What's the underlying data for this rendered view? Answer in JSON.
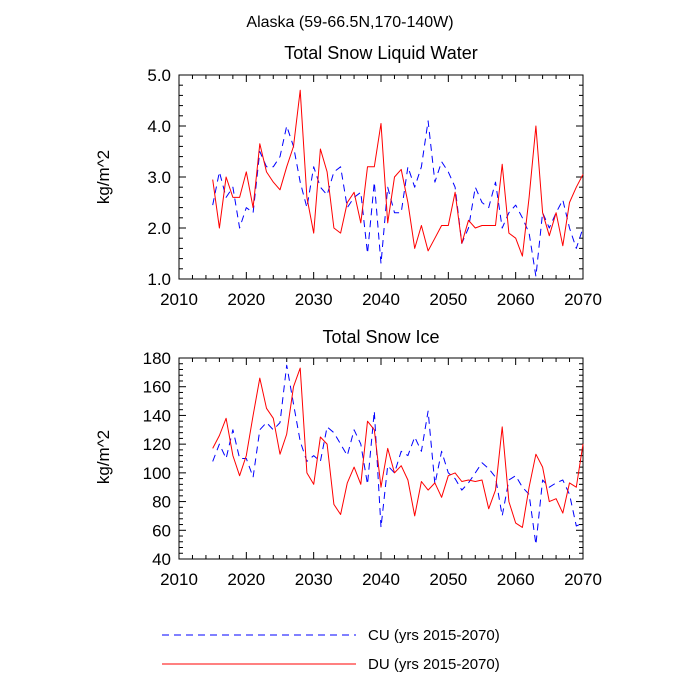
{
  "figure": {
    "title": "Alaska (59-66.5N,170-140W)"
  },
  "legend": {
    "entries": [
      {
        "label": "CU (yrs 2015-2070)",
        "color": "#0000ff",
        "style": "dashed"
      },
      {
        "label": "DU (yrs 2015-2070)",
        "color": "#ff0000",
        "style": "solid"
      }
    ]
  },
  "chart_data": [
    {
      "type": "line",
      "title": "Total Snow Liquid Water",
      "xlabel": "",
      "ylabel": "kg/m^2",
      "xlim": [
        2010,
        2070
      ],
      "ylim": [
        1.0,
        5.0
      ],
      "xticks": [
        2010,
        2020,
        2030,
        2040,
        2050,
        2060,
        2070
      ],
      "yticks": [
        1.0,
        2.0,
        3.0,
        4.0,
        5.0
      ],
      "ytick_labels": [
        "1.0",
        "2.0",
        "3.0",
        "4.0",
        "5.0"
      ],
      "x": [
        2015,
        2016,
        2017,
        2018,
        2019,
        2020,
        2021,
        2022,
        2023,
        2024,
        2025,
        2026,
        2027,
        2028,
        2029,
        2030,
        2031,
        2032,
        2033,
        2034,
        2035,
        2036,
        2037,
        2038,
        2039,
        2040,
        2041,
        2042,
        2043,
        2044,
        2045,
        2046,
        2047,
        2048,
        2049,
        2050,
        2051,
        2052,
        2053,
        2054,
        2055,
        2056,
        2057,
        2058,
        2059,
        2060,
        2061,
        2062,
        2063,
        2064,
        2065,
        2066,
        2067,
        2068,
        2069,
        2070
      ],
      "series": [
        {
          "name": "CU (yrs 2015-2070)",
          "color": "#0000ff",
          "style": "dashed",
          "values": [
            2.45,
            3.1,
            2.6,
            2.8,
            2.0,
            2.4,
            2.3,
            3.5,
            3.2,
            3.2,
            3.4,
            4.0,
            3.6,
            2.9,
            2.4,
            3.2,
            2.8,
            2.65,
            3.1,
            3.2,
            2.4,
            2.6,
            2.7,
            1.5,
            2.9,
            1.3,
            2.8,
            2.3,
            2.3,
            3.2,
            2.8,
            3.2,
            4.1,
            2.9,
            3.3,
            3.1,
            2.8,
            1.7,
            2.0,
            2.8,
            2.5,
            2.4,
            2.9,
            2.0,
            2.3,
            2.45,
            2.2,
            1.9,
            1.05,
            2.3,
            2.0,
            2.3,
            2.55,
            2.0,
            1.6,
            2.0
          ]
        },
        {
          "name": "DU (yrs 2015-2070)",
          "color": "#ff0000",
          "style": "solid",
          "values": [
            2.95,
            2.0,
            3.0,
            2.6,
            2.6,
            3.1,
            2.4,
            3.65,
            3.1,
            2.9,
            2.75,
            3.2,
            3.6,
            4.7,
            2.6,
            1.9,
            3.55,
            3.1,
            2.0,
            1.9,
            2.5,
            2.7,
            2.1,
            3.2,
            3.2,
            4.05,
            2.1,
            3.0,
            3.15,
            2.5,
            1.6,
            2.05,
            1.55,
            1.8,
            2.05,
            2.05,
            2.7,
            1.7,
            2.15,
            2.0,
            2.05,
            2.05,
            2.05,
            3.25,
            1.9,
            1.8,
            1.45,
            2.6,
            4.0,
            2.3,
            1.85,
            2.3,
            1.65,
            2.5,
            2.8,
            3.05
          ]
        }
      ]
    },
    {
      "type": "line",
      "title": "Total Snow Ice",
      "xlabel": "",
      "ylabel": "kg/m^2",
      "xlim": [
        2010,
        2070
      ],
      "ylim": [
        40,
        180
      ],
      "xticks": [
        2010,
        2020,
        2030,
        2040,
        2050,
        2060,
        2070
      ],
      "yticks": [
        40,
        60,
        80,
        100,
        120,
        140,
        160,
        180
      ],
      "ytick_labels": [
        "40",
        "60",
        "80",
        "100",
        "120",
        "140",
        "160",
        "180"
      ],
      "x": [
        2015,
        2016,
        2017,
        2018,
        2019,
        2020,
        2021,
        2022,
        2023,
        2024,
        2025,
        2026,
        2027,
        2028,
        2029,
        2030,
        2031,
        2032,
        2033,
        2034,
        2035,
        2036,
        2037,
        2038,
        2039,
        2040,
        2041,
        2042,
        2043,
        2044,
        2045,
        2046,
        2047,
        2048,
        2049,
        2050,
        2051,
        2052,
        2053,
        2054,
        2055,
        2056,
        2057,
        2058,
        2059,
        2060,
        2061,
        2062,
        2063,
        2064,
        2065,
        2066,
        2067,
        2068,
        2069,
        2070
      ],
      "series": [
        {
          "name": "CU (yrs 2015-2070)",
          "color": "#0000ff",
          "style": "dashed",
          "values": [
            108,
            120,
            110,
            130,
            110,
            110,
            97,
            130,
            135,
            130,
            135,
            175,
            148,
            122,
            108,
            112,
            108,
            132,
            128,
            120,
            112,
            130,
            120,
            92,
            143,
            62,
            105,
            100,
            115,
            112,
            125,
            115,
            143,
            92,
            115,
            100,
            96,
            88,
            93,
            100,
            107,
            103,
            97,
            70,
            95,
            98,
            90,
            85,
            50,
            95,
            90,
            93,
            95,
            85,
            63,
            65
          ]
        },
        {
          "name": "DU (yrs 2015-2070)",
          "color": "#ff0000",
          "style": "solid",
          "values": [
            117,
            126,
            138,
            112,
            98,
            112,
            140,
            166,
            145,
            138,
            113,
            127,
            160,
            173,
            100,
            92,
            125,
            120,
            78,
            71,
            93,
            104,
            92,
            136,
            130,
            90,
            117,
            100,
            105,
            95,
            70,
            94,
            88,
            93,
            83,
            98,
            100,
            94,
            95,
            94,
            95,
            75,
            88,
            132,
            80,
            65,
            62,
            90,
            113,
            104,
            80,
            82,
            72,
            93,
            90,
            120
          ]
        }
      ]
    }
  ]
}
